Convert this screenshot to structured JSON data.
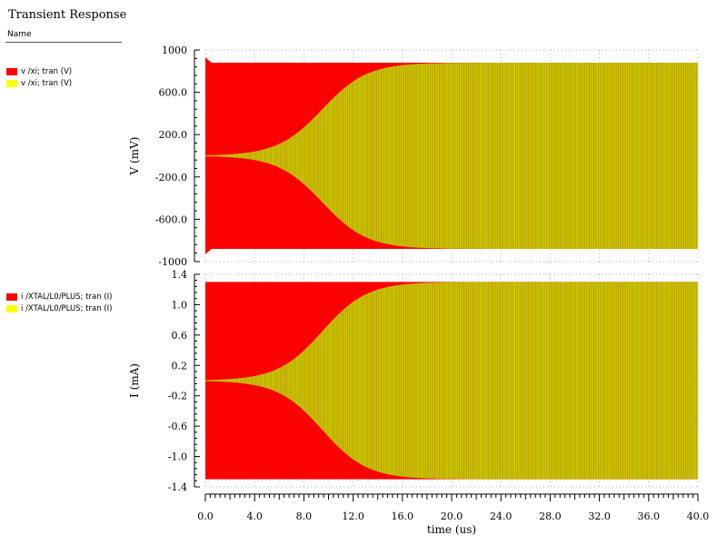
{
  "window": {
    "title": "Transient Response",
    "name_header": "Name"
  },
  "colors": {
    "red_trace": "#ff0000",
    "yellow_trace": "#c8c800",
    "legend_yellow": "#ffff00"
  },
  "legends": {
    "top": [
      {
        "label": "v /xi; tran (V)",
        "color": "#ff0000"
      },
      {
        "label": "v /xi; tran (V)",
        "color": "#ffff00"
      }
    ],
    "bottom": [
      {
        "label": "i /XTAL/L0/PLUS; tran (I)",
        "color": "#ff0000"
      },
      {
        "label": "i /XTAL/L0/PLUS; tran (I)",
        "color": "#ffff00"
      }
    ]
  },
  "chart_data": [
    {
      "type": "line",
      "ylabel": "V (mV)",
      "ylim": [
        -1000,
        1000
      ],
      "y_ticks": [
        "1000",
        "600.0",
        "200.0",
        "-200.0",
        "-600.0",
        "-1000"
      ],
      "y_tick_values": [
        1000,
        600,
        200,
        -200,
        -600,
        -1000
      ],
      "grid": true,
      "series": [
        {
          "name": "v /xi; tran (V)",
          "color": "#ff0000",
          "envelope_amplitude": 880,
          "initial_overshoot": 930
        },
        {
          "name": "v /xi; tran (V)",
          "color": "#c8c800",
          "envelope_amplitude_final": 880,
          "growth_midpoint_us": 9.5,
          "growth_rate": 0.55
        }
      ]
    },
    {
      "type": "line",
      "ylabel": "I (mA)",
      "ylim": [
        -1.4,
        1.4
      ],
      "y_ticks": [
        "1.4",
        "1.0",
        "0.6",
        "0.2",
        "-0.2",
        "-0.6",
        "-1.0",
        "-1.4"
      ],
      "y_tick_values": [
        1.4,
        1.0,
        0.6,
        0.2,
        -0.2,
        -0.6,
        -1.0,
        -1.4
      ],
      "grid": true,
      "series": [
        {
          "name": "i /XTAL/L0/PLUS; tran (I)",
          "color": "#ff0000",
          "envelope_amplitude": 1.3
        },
        {
          "name": "i /XTAL/L0/PLUS; tran (I)",
          "color": "#c8c800",
          "envelope_amplitude_final": 1.3,
          "growth_midpoint_us": 9.5,
          "growth_rate": 0.55
        }
      ]
    }
  ],
  "x_axis": {
    "xlabel": "time (us)",
    "xlim": [
      0,
      40
    ],
    "ticks": [
      "0.0",
      "4.0",
      "8.0",
      "12.0",
      "16.0",
      "20.0",
      "24.0",
      "28.0",
      "32.0",
      "36.0",
      "40.0"
    ],
    "tick_values": [
      0,
      4,
      8,
      12,
      16,
      20,
      24,
      28,
      32,
      36,
      40
    ]
  }
}
